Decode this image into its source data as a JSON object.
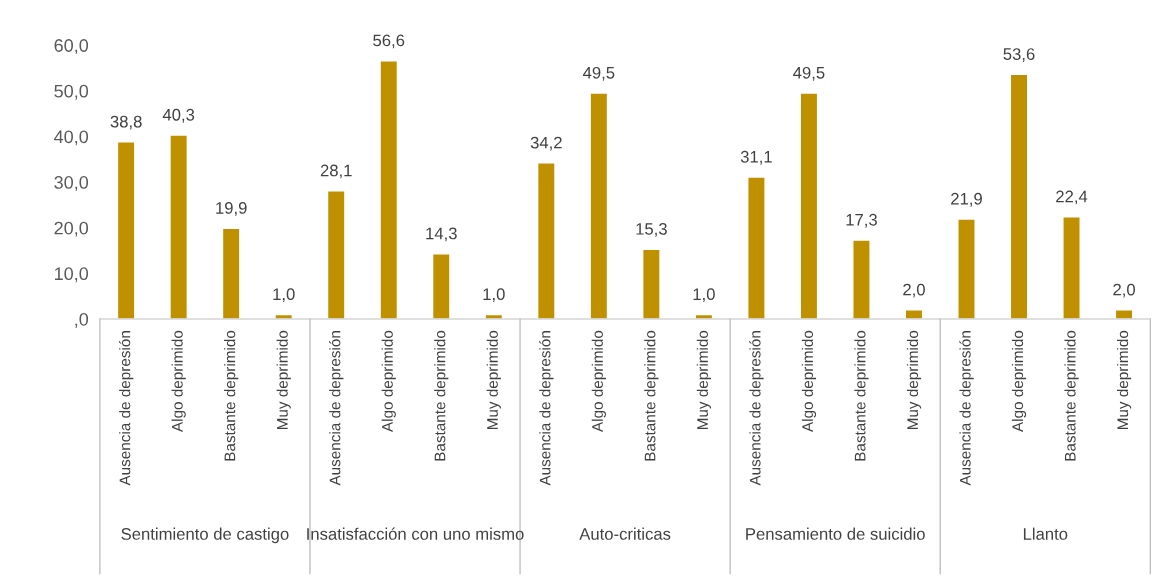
{
  "chart_data": {
    "type": "bar",
    "categories": [
      "Ausencia de depresión",
      "Algo deprimido",
      "Bastante deprimido",
      "Muy deprimido",
      "Ausencia de depresión",
      "Algo deprimido",
      "Bastante deprimido",
      "Muy deprimido",
      "Ausencia de depresión",
      "Algo deprimido",
      "Bastante deprimido",
      "Muy deprimido",
      "Ausencia de depresión",
      "Algo deprimido",
      "Bastante deprimido",
      "Muy deprimido",
      "Ausencia de depresión",
      "Algo deprimido",
      "Bastante deprimido",
      "Muy deprimido"
    ],
    "values": [
      38.8,
      40.3,
      19.9,
      1.0,
      28.1,
      56.6,
      14.3,
      1.0,
      34.2,
      49.5,
      15.3,
      1.0,
      31.1,
      49.5,
      17.3,
      2.0,
      21.9,
      53.6,
      22.4,
      2.0
    ],
    "value_labels": [
      "38,8",
      "40,3",
      "19,9",
      "1,0",
      "28,1",
      "56,6",
      "14,3",
      "1,0",
      "34,2",
      "49,5",
      "15,3",
      "1,0",
      "31,1",
      "49,5",
      "17,3",
      "2,0",
      "21,9",
      "53,6",
      "22,4",
      "2,0"
    ],
    "color": "#bf9000",
    "ylim": [
      0,
      60
    ],
    "yticks": [
      {
        "value": 0,
        "label": ",0"
      },
      {
        "value": 10,
        "label": "10,0"
      },
      {
        "value": 20,
        "label": "20,0"
      },
      {
        "value": 30,
        "label": "30,0"
      },
      {
        "value": 40,
        "label": "40,0"
      },
      {
        "value": 50,
        "label": "50,0"
      },
      {
        "value": 60,
        "label": "60,0"
      }
    ],
    "annotations": [
      "Sentimiento de castigo",
      "Insatisfacción con uno mismo",
      "Auto-criticas",
      "Pensamiento de suicidio",
      "Llanto"
    ],
    "grid": false,
    "legend": false
  }
}
